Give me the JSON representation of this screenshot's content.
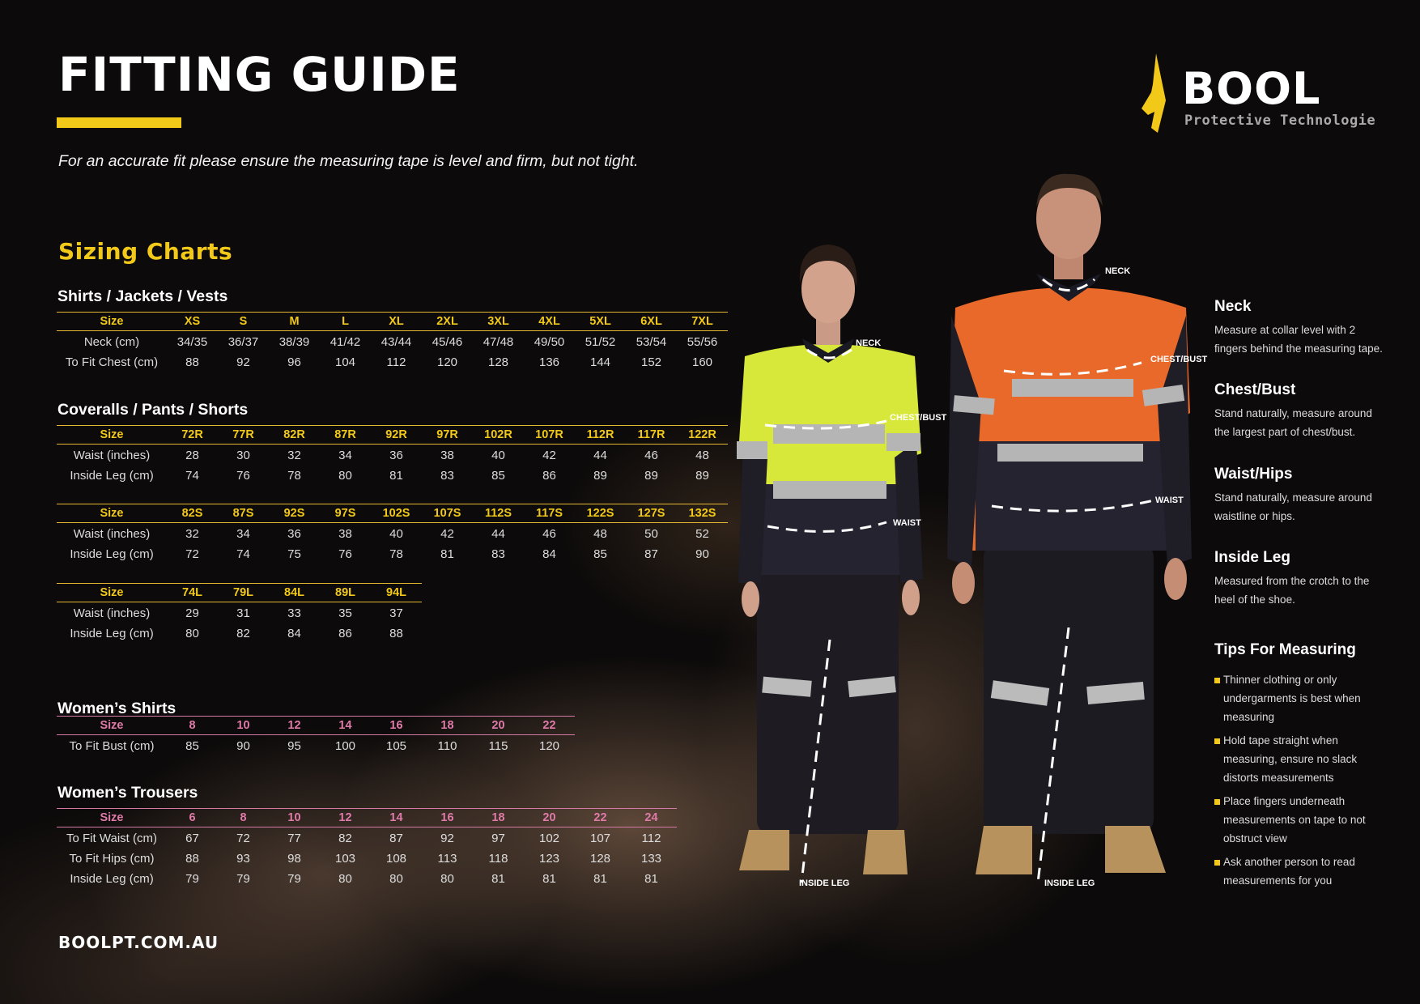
{
  "header": {
    "title": "FITTING GUIDE",
    "subtitle": "For an accurate fit please ensure the measuring tape is level and firm, but not tight.",
    "accent": "#f2c919"
  },
  "logo": {
    "name": "BOOL",
    "tagline": "Protective Technologies"
  },
  "sizing_title": "Sizing Charts",
  "sections": [
    {
      "title": "Shirts / Jackets / Vests",
      "theme": "yellow",
      "tables": [
        {
          "header": [
            "Size",
            "XS",
            "S",
            "M",
            "L",
            "XL",
            "2XL",
            "3XL",
            "4XL",
            "5XL",
            "6XL",
            "7XL"
          ],
          "rows": [
            [
              "Neck (cm)",
              "34/35",
              "36/37",
              "38/39",
              "41/42",
              "43/44",
              "45/46",
              "47/48",
              "49/50",
              "51/52",
              "53/54",
              "55/56"
            ],
            [
              "To Fit Chest (cm)",
              "88",
              "92",
              "96",
              "104",
              "112",
              "120",
              "128",
              "136",
              "144",
              "152",
              "160"
            ]
          ]
        }
      ]
    },
    {
      "title": "Coveralls / Pants / Shorts",
      "theme": "yellow",
      "tables": [
        {
          "header": [
            "Size",
            "72R",
            "77R",
            "82R",
            "87R",
            "92R",
            "97R",
            "102R",
            "107R",
            "112R",
            "117R",
            "122R"
          ],
          "rows": [
            [
              "Waist (inches)",
              "28",
              "30",
              "32",
              "34",
              "36",
              "38",
              "40",
              "42",
              "44",
              "46",
              "48"
            ],
            [
              "Inside Leg (cm)",
              "74",
              "76",
              "78",
              "80",
              "81",
              "83",
              "85",
              "86",
              "89",
              "89",
              "89"
            ]
          ]
        },
        {
          "header": [
            "Size",
            "82S",
            "87S",
            "92S",
            "97S",
            "102S",
            "107S",
            "112S",
            "117S",
            "122S",
            "127S",
            "132S"
          ],
          "rows": [
            [
              "Waist (inches)",
              "32",
              "34",
              "36",
              "38",
              "40",
              "42",
              "44",
              "46",
              "48",
              "50",
              "52"
            ],
            [
              "Inside Leg (cm)",
              "72",
              "74",
              "75",
              "76",
              "78",
              "81",
              "83",
              "84",
              "85",
              "87",
              "90"
            ]
          ]
        },
        {
          "header": [
            "Size",
            "74L",
            "79L",
            "84L",
            "89L",
            "94L"
          ],
          "rows": [
            [
              "Waist (inches)",
              "29",
              "31",
              "33",
              "35",
              "37"
            ],
            [
              "Inside Leg (cm)",
              "80",
              "82",
              "84",
              "86",
              "88"
            ]
          ]
        }
      ]
    },
    {
      "title": "Women’s Shirts",
      "theme": "pink",
      "tables": [
        {
          "header": [
            "Size",
            "8",
            "10",
            "12",
            "14",
            "16",
            "18",
            "20",
            "22"
          ],
          "rows": [
            [
              "To Fit Bust (cm)",
              "85",
              "90",
              "95",
              "100",
              "105",
              "110",
              "115",
              "120"
            ]
          ]
        }
      ]
    },
    {
      "title": "Women’s Trousers",
      "theme": "pink",
      "tables": [
        {
          "header": [
            "Size",
            "6",
            "8",
            "10",
            "12",
            "14",
            "16",
            "18",
            "20",
            "22",
            "24"
          ],
          "rows": [
            [
              "To Fit Waist (cm)",
              "67",
              "72",
              "77",
              "82",
              "87",
              "92",
              "97",
              "102",
              "107",
              "112"
            ],
            [
              "To Fit Hips (cm)",
              "88",
              "93",
              "98",
              "103",
              "108",
              "113",
              "118",
              "123",
              "128",
              "133"
            ],
            [
              "Inside Leg (cm)",
              "79",
              "79",
              "79",
              "80",
              "80",
              "80",
              "81",
              "81",
              "81",
              "81"
            ]
          ]
        }
      ]
    }
  ],
  "footer": {
    "website": "BOOLPT.COM.AU"
  },
  "measure_labels": {
    "neck": "NECK",
    "chest": "CHEST/BUST",
    "waist": "WAIST",
    "inside_leg": "INSIDE LEG"
  },
  "guide": [
    {
      "title": "Neck",
      "text": "Measure at collar level with 2 fingers behind the measuring tape."
    },
    {
      "title": "Chest/Bust",
      "text": "Stand naturally, measure around the largest part of chest/bust."
    },
    {
      "title": "Waist/Hips",
      "text": "Stand naturally, measure around waistline or hips."
    },
    {
      "title": "Inside Leg",
      "text": "Measured from the crotch to the heel of the shoe."
    }
  ],
  "tips": {
    "title": "Tips For Measuring",
    "items": [
      "Thinner clothing or only undergarments is best when measuring",
      "Hold tape straight when measuring, ensure no slack distorts measurements",
      "Place fingers underneath measurements on tape to not obstruct view",
      "Ask another person to read measurements for you"
    ]
  }
}
